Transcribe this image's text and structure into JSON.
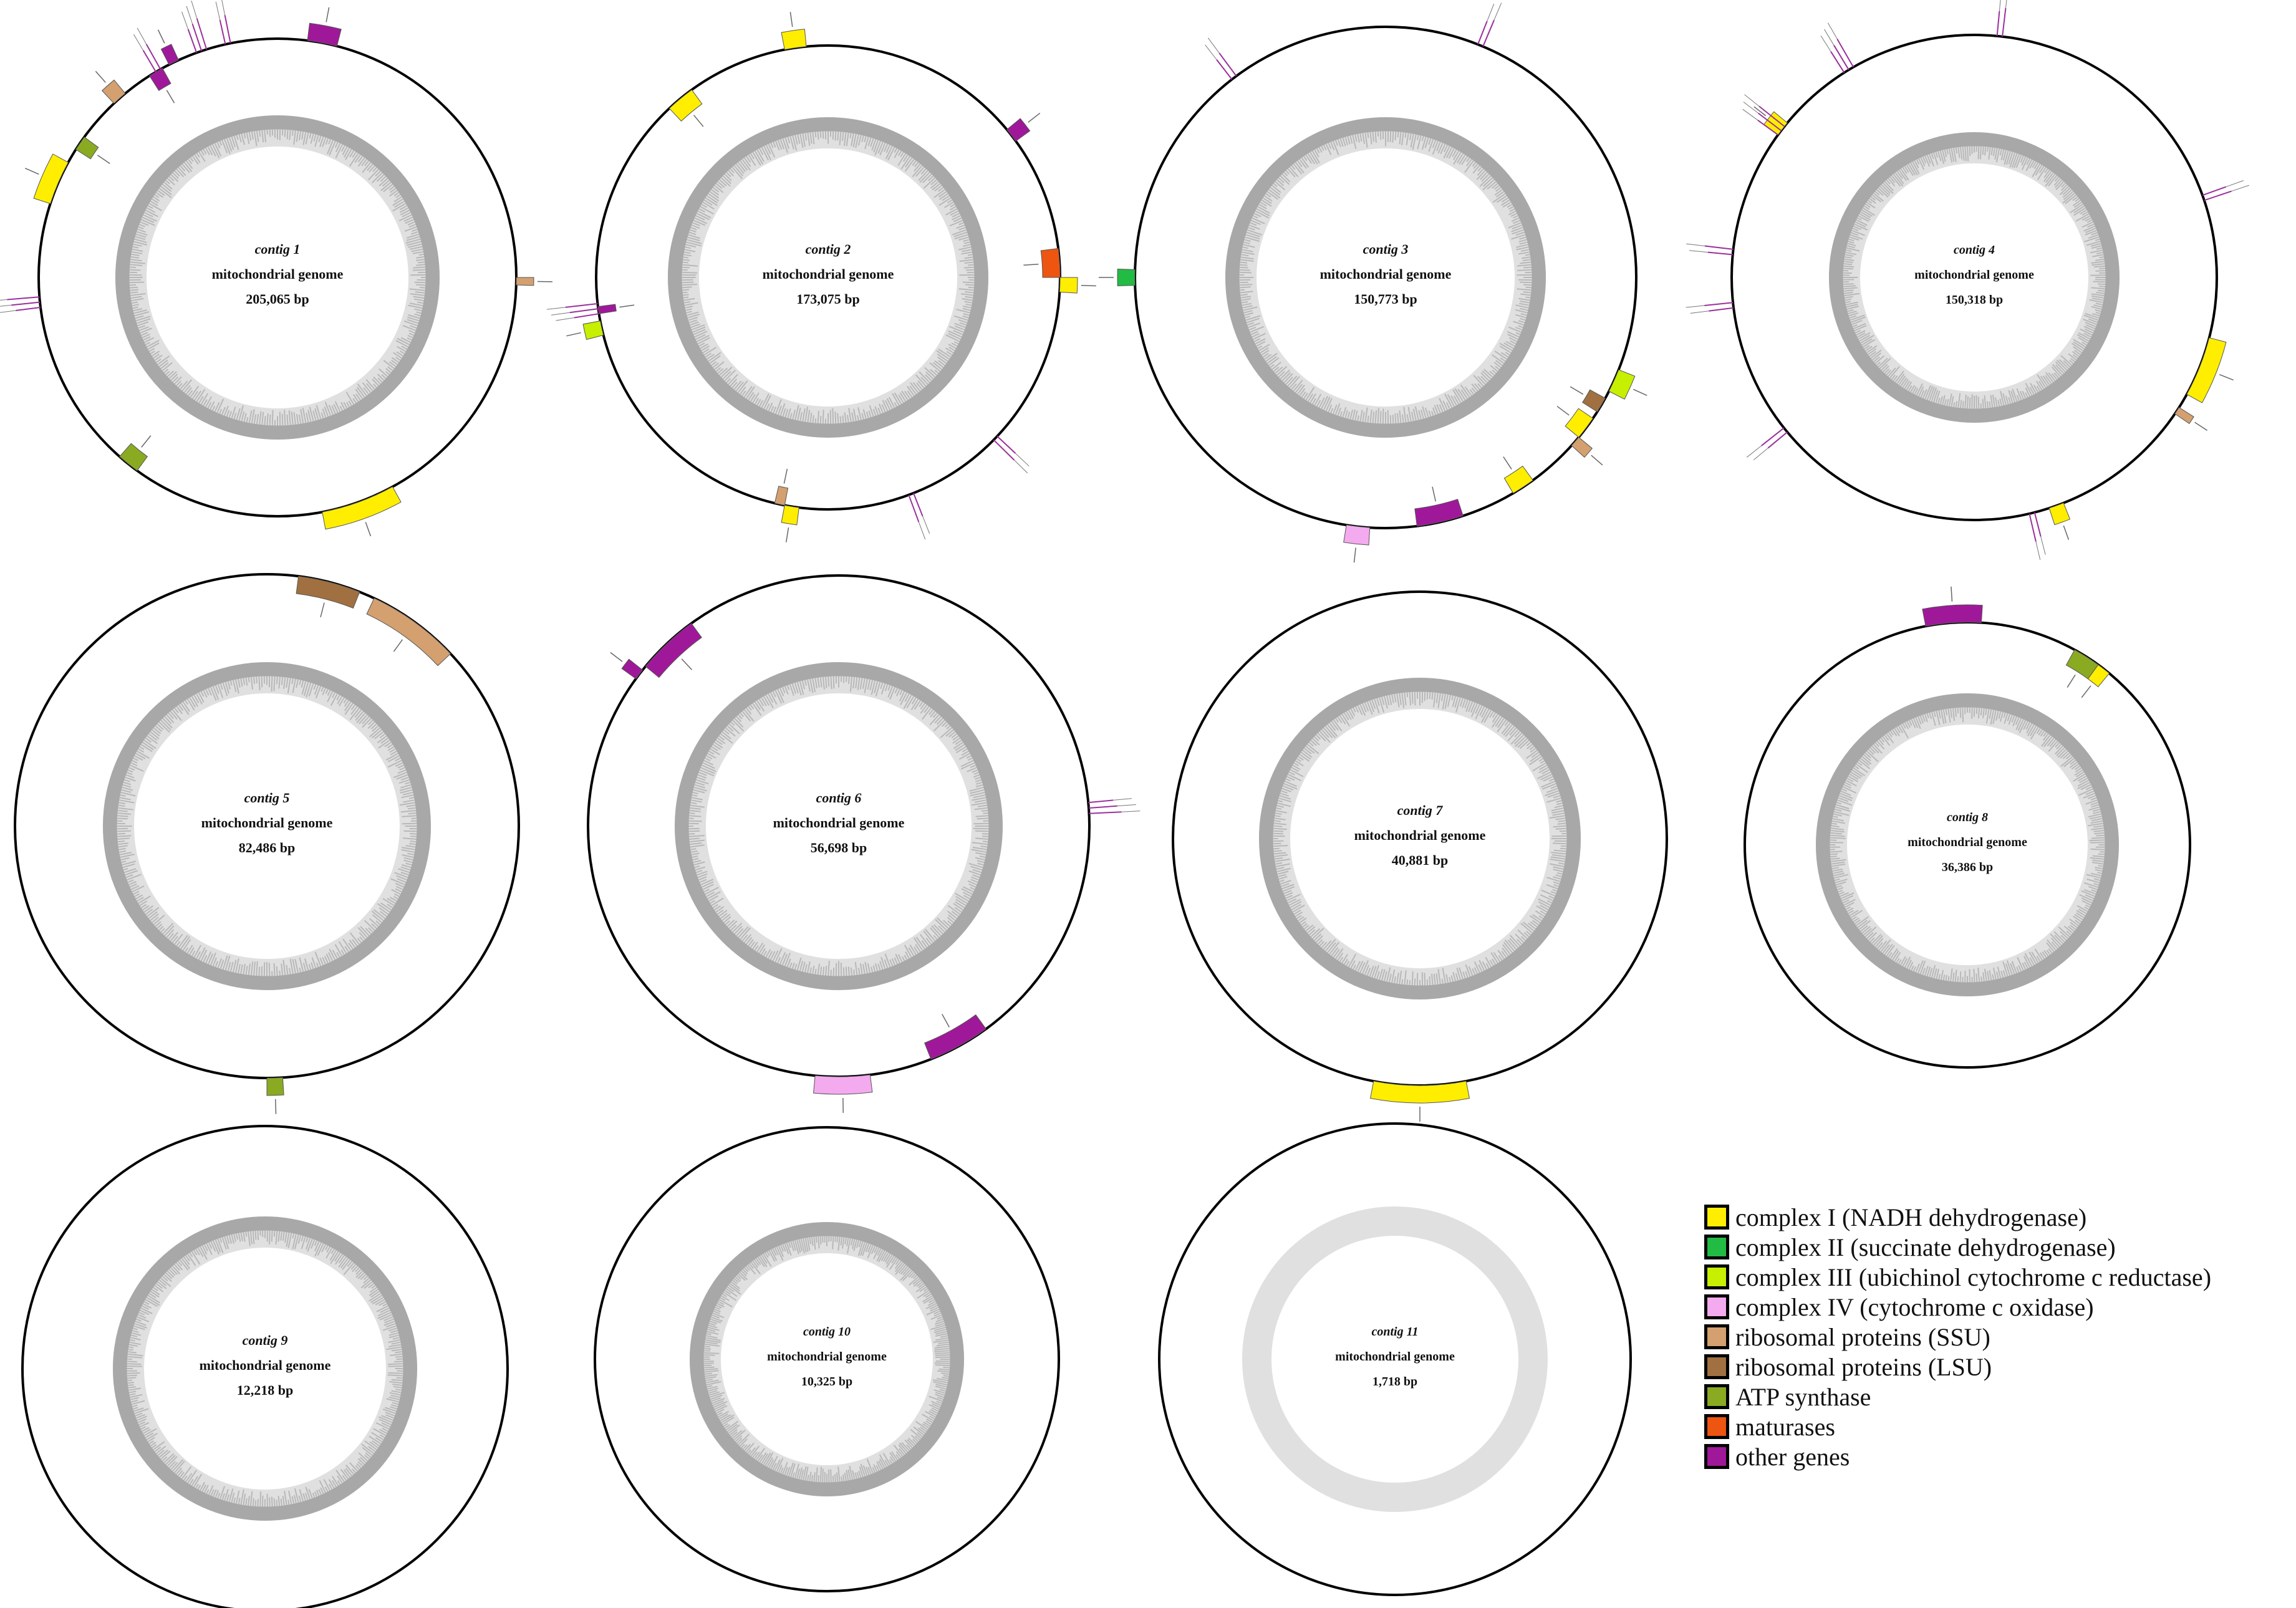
{
  "colors": {
    "ring_stroke": "#000000",
    "gc_outer": "#a8a8a8",
    "gc_inner": "#e0e0e0",
    "label_line": "#9b2f9b"
  },
  "legend": [
    {
      "key": "complex1",
      "label": "complex I (NADH dehydrogenase)",
      "color": "#ffee00"
    },
    {
      "key": "complex2",
      "label": "complex II (succinate dehydrogenase)",
      "color": "#22bb44"
    },
    {
      "key": "complex3",
      "label": "complex III (ubichinol cytochrome c reductase)",
      "color": "#c6f000"
    },
    {
      "key": "complex4",
      "label": "complex IV (cytochrome c oxidase)",
      "color": "#f4aaee"
    },
    {
      "key": "ssu",
      "label": "ribosomal proteins (SSU)",
      "color": "#d4a070"
    },
    {
      "key": "lsu",
      "label": "ribosomal proteins (LSU)",
      "color": "#a07040"
    },
    {
      "key": "atp",
      "label": "ATP synthase",
      "color": "#8aaa22"
    },
    {
      "key": "maturase",
      "label": "maturases",
      "color": "#ee5511"
    },
    {
      "key": "other",
      "label": "other genes",
      "color": "#a0189a"
    }
  ],
  "contigs": [
    {
      "name": "contig 1",
      "subtitle": "mitochondrial genome",
      "length": "205,065 bp",
      "genes": [
        {
          "type": "other",
          "start": 2,
          "end": 4,
          "out": true
        },
        {
          "type": "ssu",
          "start": 25,
          "end": 25.5,
          "out": true
        },
        {
          "type": "ssu",
          "start": 88,
          "end": 89,
          "out": true
        },
        {
          "type": "complex1",
          "start": 42,
          "end": 47,
          "out": true
        },
        {
          "type": "atp",
          "start": 60,
          "end": 61.5,
          "out": false
        },
        {
          "type": "complex1",
          "start": 80,
          "end": 83,
          "out": true
        },
        {
          "type": "atp",
          "start": 84,
          "end": 85,
          "out": false
        },
        {
          "type": "other",
          "start": 91,
          "end": 92,
          "out": false
        },
        {
          "type": "other",
          "start": 92.5,
          "end": 93.2,
          "out": true
        }
      ],
      "ticks": [
        {
          "pos": 73,
          "n": 3
        },
        {
          "pos": 91.5,
          "n": 2
        },
        {
          "pos": 94.5,
          "n": 3
        },
        {
          "pos": 96.5,
          "n": 2
        }
      ]
    },
    {
      "name": "contig 2",
      "subtitle": "mitochondrial genome",
      "length": "173,075 bp",
      "genes": [
        {
          "type": "complex1",
          "start": 97,
          "end": 98.5,
          "out": true
        },
        {
          "type": "other",
          "start": 14,
          "end": 15,
          "out": true
        },
        {
          "type": "maturase",
          "start": 23,
          "end": 25,
          "out": false
        },
        {
          "type": "complex1",
          "start": 25,
          "end": 26,
          "out": true
        },
        {
          "type": "complex1",
          "start": 52,
          "end": 53,
          "out": true
        },
        {
          "type": "ssu",
          "start": 53,
          "end": 53.7,
          "out": false
        },
        {
          "type": "complex3",
          "start": 71,
          "end": 72,
          "out": true
        },
        {
          "type": "other",
          "start": 72.5,
          "end": 73,
          "out": false
        },
        {
          "type": "complex1",
          "start": 88,
          "end": 90,
          "out": false
        }
      ],
      "ticks": [
        {
          "pos": 37,
          "n": 2
        },
        {
          "pos": 44,
          "n": 2
        },
        {
          "pos": 72.5,
          "n": 3
        }
      ]
    },
    {
      "name": "contig 3",
      "subtitle": "mitochondrial genome",
      "length": "150,773 bp",
      "genes": [
        {
          "type": "complex3",
          "start": 31,
          "end": 32.5,
          "out": true
        },
        {
          "type": "lsu",
          "start": 33,
          "end": 34,
          "out": false
        },
        {
          "type": "complex1",
          "start": 34.5,
          "end": 36,
          "out": false
        },
        {
          "type": "ssu",
          "start": 36,
          "end": 36.7,
          "out": true
        },
        {
          "type": "complex1",
          "start": 40,
          "end": 41.5,
          "out": false
        },
        {
          "type": "other",
          "start": 45,
          "end": 48,
          "out": false
        },
        {
          "type": "complex4",
          "start": 51,
          "end": 52.5,
          "out": true
        },
        {
          "type": "complex2",
          "start": 74.5,
          "end": 75.5,
          "out": true
        }
      ],
      "ticks": [
        {
          "pos": 6,
          "n": 2
        },
        {
          "pos": 89.5,
          "n": 2
        }
      ]
    },
    {
      "name": "contig 4",
      "subtitle": "mitochondrial genome",
      "length": "150,318 bp",
      "genes": [
        {
          "type": "complex1",
          "start": 29,
          "end": 33,
          "out": true
        },
        {
          "type": "ssu",
          "start": 34,
          "end": 34.5,
          "out": true
        },
        {
          "type": "complex1",
          "start": 44,
          "end": 45,
          "out": true
        },
        {
          "type": "complex1",
          "start": 85,
          "end": 86,
          "out": true
        }
      ],
      "ticks": [
        {
          "pos": 1.5,
          "n": 2
        },
        {
          "pos": 19.5,
          "n": 2
        },
        {
          "pos": 46,
          "n": 2
        },
        {
          "pos": 64,
          "n": 2
        },
        {
          "pos": 73,
          "n": 2
        },
        {
          "pos": 76.5,
          "n": 2
        },
        {
          "pos": 85,
          "n": 3
        },
        {
          "pos": 91,
          "n": 3
        }
      ]
    },
    {
      "name": "contig 5",
      "subtitle": "mitochondrial genome",
      "length": "82,486 bp",
      "genes": [
        {
          "type": "lsu",
          "start": 2,
          "end": 6,
          "out": false
        },
        {
          "type": "ssu",
          "start": 7,
          "end": 13,
          "out": false
        },
        {
          "type": "atp",
          "start": 49,
          "end": 50,
          "out": true
        }
      ],
      "ticks": []
    },
    {
      "name": "contig 6",
      "subtitle": "mitochondrial genome",
      "length": "56,698 bp",
      "genes": [
        {
          "type": "other",
          "start": 40,
          "end": 44,
          "out": false
        },
        {
          "type": "complex4",
          "start": 48,
          "end": 51.5,
          "out": true
        },
        {
          "type": "other",
          "start": 86,
          "end": 90,
          "out": false
        },
        {
          "type": "other",
          "start": 85,
          "end": 85.7,
          "out": true
        }
      ],
      "ticks": [
        {
          "pos": 23.5,
          "n": 3
        }
      ]
    },
    {
      "name": "contig 7",
      "subtitle": "mitochondrial genome",
      "length": "40,881 bp",
      "genes": [
        {
          "type": "complex1",
          "start": 47,
          "end": 53,
          "out": true
        }
      ],
      "ticks": []
    },
    {
      "name": "contig 8",
      "subtitle": "mitochondrial genome",
      "length": "36,386 bp",
      "genes": [
        {
          "type": "other",
          "start": 97,
          "end": 101,
          "out": true
        },
        {
          "type": "atp",
          "start": 8,
          "end": 10,
          "out": false
        },
        {
          "type": "complex1",
          "start": 10,
          "end": 11,
          "out": false
        }
      ],
      "ticks": []
    },
    {
      "name": "contig 9",
      "subtitle": "mitochondrial genome",
      "length": "12,218 bp",
      "genes": [],
      "ticks": []
    },
    {
      "name": "contig 10",
      "subtitle": "mitochondrial genome",
      "length": "10,325 bp",
      "genes": [],
      "ticks": []
    },
    {
      "name": "contig 11",
      "subtitle": "mitochondrial genome",
      "length": "1,718 bp",
      "genes": [],
      "ticks": []
    }
  ]
}
